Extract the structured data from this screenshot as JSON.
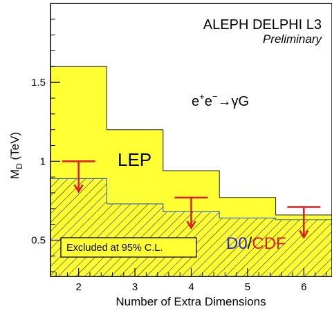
{
  "chart_data": {
    "type": "step-area",
    "experiments_label": "ALEPH DELPHI L3",
    "status_label": "Preliminary",
    "process_label": {
      "base": "e",
      "sup_plus": "+",
      "sup_minus": "−",
      "arrow": "→",
      "products": "γG"
    },
    "lep_label": "LEP",
    "tevatron_label": {
      "part1": "D0",
      "slash": "/",
      "part2": "CDF"
    },
    "excluded_label": "Excluded at 95% C.L.",
    "xlabel": "Number of Extra Dimensions",
    "ylabel": "M",
    "ylabel_sub": "D",
    "ylabel_unit": " (TeV)",
    "xlim": [
      1.5,
      6.5
    ],
    "ylim": [
      0.27,
      2.0
    ],
    "x_ticks": [
      2,
      3,
      4,
      5,
      6
    ],
    "y_ticks": [
      0.5,
      1,
      1.5
    ],
    "y_tick_labels": [
      "0.5",
      "1",
      "1.5"
    ],
    "lep_limits": {
      "n": [
        2,
        3,
        4,
        5,
        6
      ],
      "md_tev": [
        1.6,
        1.2,
        0.94,
        0.77,
        0.66
      ]
    },
    "tevatron_limits": {
      "n": [
        2,
        3,
        4,
        5,
        6
      ],
      "md_tev": [
        0.89,
        0.73,
        0.68,
        0.64,
        0.63
      ]
    },
    "tevatron_arrows": {
      "n": [
        2,
        4,
        6
      ],
      "md_tev": [
        1.0,
        0.77,
        0.71
      ]
    },
    "colors": {
      "lep_fill": "#ffff33",
      "hatch": "#1a1a1a",
      "border": "#3b6eb5",
      "arrow": "#e31a1c",
      "d0": "#2323e0",
      "cdf": "#e31a1c"
    }
  }
}
